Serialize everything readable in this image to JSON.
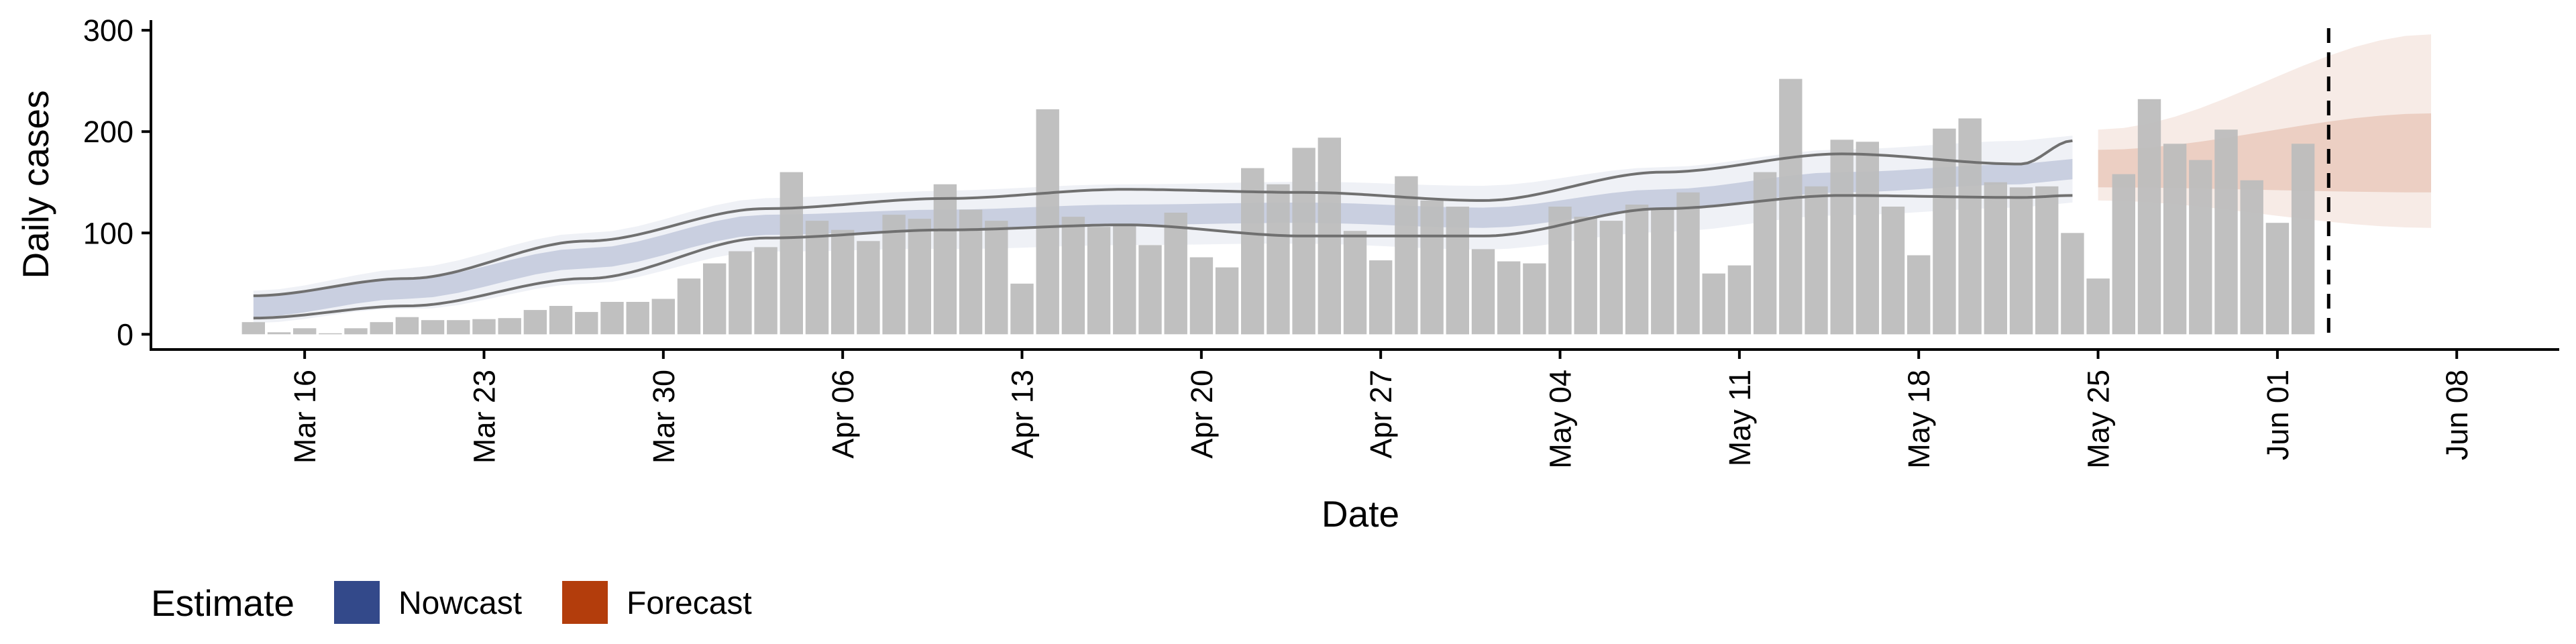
{
  "chart_data": {
    "type": "bar",
    "title": "",
    "xlabel": "Date",
    "ylabel": "Daily cases",
    "ylim": [
      -15,
      310
    ],
    "yticks": [
      0,
      100,
      200,
      300
    ],
    "xlim": [
      "2020-03-10",
      "2020-06-12"
    ],
    "xticks": [
      {
        "date": "2020-03-16",
        "label": "Mar 16"
      },
      {
        "date": "2020-03-23",
        "label": "Mar 23"
      },
      {
        "date": "2020-03-30",
        "label": "Mar 30"
      },
      {
        "date": "2020-04-06",
        "label": "Apr 06"
      },
      {
        "date": "2020-04-13",
        "label": "Apr 13"
      },
      {
        "date": "2020-04-20",
        "label": "Apr 20"
      },
      {
        "date": "2020-04-27",
        "label": "Apr 27"
      },
      {
        "date": "2020-05-04",
        "label": "May 04"
      },
      {
        "date": "2020-05-11",
        "label": "May 11"
      },
      {
        "date": "2020-05-18",
        "label": "May 18"
      },
      {
        "date": "2020-05-25",
        "label": "May 25"
      },
      {
        "date": "2020-06-01",
        "label": "Jun 01"
      },
      {
        "date": "2020-06-08",
        "label": "Jun 08"
      }
    ],
    "grid": false,
    "colors": {
      "bars": "#bdbdbd",
      "nowcast": "#33498a",
      "forecast": "#b33d0c",
      "reference_line": "#000000",
      "interval_line": "#707070"
    },
    "reference_line_date": "2020-06-03",
    "bars": {
      "start_date": "2020-03-14",
      "values": [
        12,
        2,
        6,
        1,
        6,
        12,
        17,
        14,
        14,
        15,
        16,
        24,
        28,
        22,
        32,
        32,
        35,
        55,
        70,
        82,
        86,
        160,
        112,
        103,
        92,
        118,
        114,
        148,
        123,
        112,
        50,
        222,
        116,
        106,
        107,
        88,
        120,
        76,
        66,
        164,
        148,
        184,
        194,
        102,
        73,
        156,
        132,
        126,
        84,
        72,
        70,
        126,
        116,
        112,
        128,
        124,
        140,
        60,
        68,
        160,
        252,
        146,
        192,
        190,
        126,
        78,
        203,
        213,
        150,
        145,
        146,
        100,
        55,
        158,
        232,
        188,
        172,
        202,
        152,
        110,
        188
      ]
    },
    "series": [
      {
        "name": "Nowcast",
        "legend": "Nowcast",
        "x_start": "2020-03-14",
        "x_end": "2020-05-24",
        "median_knots": [
          [
            0,
            27
          ],
          [
            6,
            45
          ],
          [
            13,
            75
          ],
          [
            20,
            108
          ],
          [
            27,
            113
          ],
          [
            34,
            118
          ],
          [
            41,
            120
          ],
          [
            48,
            115
          ],
          [
            55,
            133
          ],
          [
            62,
            150
          ],
          [
            69,
            158
          ],
          [
            71,
            163
          ]
        ],
        "inner_half_width": 10,
        "outer_knots": [
          [
            0,
            6
          ],
          [
            13,
            15
          ],
          [
            34,
            20
          ],
          [
            55,
            22
          ],
          [
            71,
            23
          ]
        ],
        "ci90_upper_knots": [
          [
            0,
            38
          ],
          [
            6,
            55
          ],
          [
            13,
            92
          ],
          [
            20,
            124
          ],
          [
            27,
            134
          ],
          [
            34,
            143
          ],
          [
            41,
            140
          ],
          [
            48,
            132
          ],
          [
            55,
            160
          ],
          [
            62,
            178
          ],
          [
            69,
            168
          ],
          [
            71,
            191
          ]
        ],
        "ci90_lower_knots": [
          [
            0,
            16
          ],
          [
            6,
            28
          ],
          [
            13,
            55
          ],
          [
            20,
            95
          ],
          [
            27,
            103
          ],
          [
            34,
            108
          ],
          [
            41,
            97
          ],
          [
            48,
            97
          ],
          [
            55,
            124
          ],
          [
            62,
            137
          ],
          [
            69,
            135
          ],
          [
            71,
            137
          ]
        ]
      },
      {
        "name": "Forecast",
        "legend": "Forecast",
        "x_start": "2020-05-25",
        "x_end": "2020-06-07",
        "median_knots": [
          [
            0,
            167
          ],
          [
            13,
            178
          ]
        ],
        "inner_lower_knots": [
          [
            0,
            145
          ],
          [
            13,
            140
          ]
        ],
        "inner_upper_knots": [
          [
            0,
            182
          ],
          [
            13,
            218
          ]
        ],
        "outer_lower_knots": [
          [
            0,
            132
          ],
          [
            13,
            105
          ]
        ],
        "outer_upper_knots": [
          [
            0,
            202
          ],
          [
            13,
            296
          ]
        ]
      }
    ],
    "legend": {
      "title": "Estimate",
      "placement": "bottom-left",
      "entries": [
        "Nowcast",
        "Forecast"
      ]
    }
  }
}
